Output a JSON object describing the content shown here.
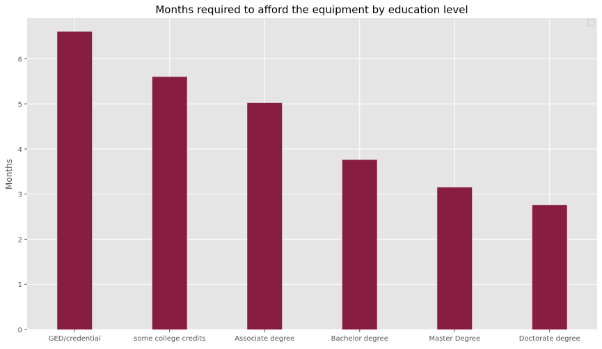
{
  "chart_data": {
    "type": "bar",
    "title": "Months required to afford the equipment by education level",
    "xlabel": "",
    "ylabel": "Months",
    "categories": [
      "GED/credential",
      "some college credits",
      "Associate degree",
      "Bachelor degree",
      "Master Degree",
      "Doctorate degree"
    ],
    "values": [
      6.6,
      5.6,
      5.02,
      3.76,
      3.15,
      2.76
    ],
    "yticks": [
      0,
      1,
      2,
      3,
      4,
      5,
      6
    ],
    "ylim": [
      0,
      6.9
    ],
    "grid": true,
    "legend": "top-right (empty)",
    "colors": {
      "bar": "#871e41",
      "plot_background": "#e5e5e5",
      "grid": "#ffffff",
      "tick_text": "#555555",
      "title_text": "#000000"
    }
  }
}
